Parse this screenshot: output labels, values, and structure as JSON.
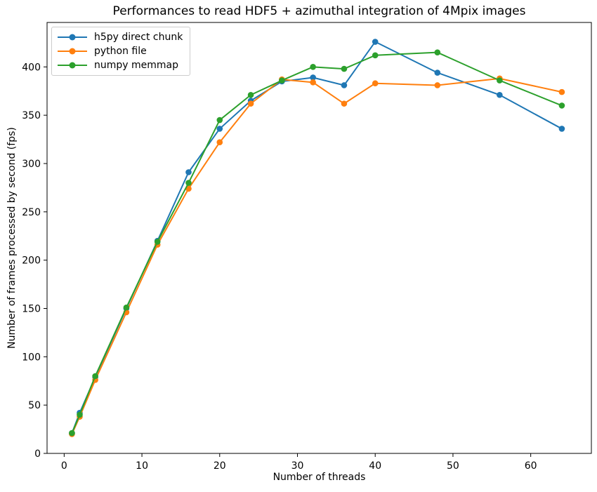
{
  "figure": {
    "background": "#ffffff",
    "frame_color": "#000000",
    "text_color": "#000000",
    "legend_border_color": "#cccccc"
  },
  "chart_data": {
    "type": "line",
    "title": "Performances to read HDF5 + azimuthal integration of 4Mpix images",
    "xlabel": "Number of threads",
    "ylabel": "Number of frames processed by second (fps)",
    "x": [
      1,
      2,
      4,
      8,
      12,
      16,
      20,
      24,
      28,
      32,
      36,
      40,
      48,
      56,
      64
    ],
    "series": [
      {
        "name": "h5py direct chunk",
        "color": "#1f77b4",
        "values": [
          21,
          42,
          79,
          150,
          220,
          291,
          336,
          365,
          385,
          389,
          381,
          426,
          394,
          371,
          336
        ]
      },
      {
        "name": "python file",
        "color": "#ff7f0e",
        "values": [
          20,
          38,
          76,
          146,
          216,
          274,
          322,
          362,
          387,
          384,
          362,
          383,
          381,
          388,
          374
        ]
      },
      {
        "name": "numpy memmap",
        "color": "#2ca02c",
        "values": [
          21,
          40,
          80,
          151,
          219,
          280,
          345,
          371,
          386,
          400,
          398,
          412,
          415,
          386,
          360
        ]
      }
    ],
    "xticks": [
      0,
      10,
      20,
      30,
      40,
      50,
      60
    ],
    "yticks": [
      0,
      50,
      100,
      150,
      200,
      250,
      300,
      350,
      400
    ],
    "xlim": [
      -2.2,
      67.8
    ],
    "ylim": [
      0,
      446
    ],
    "grid": false,
    "legend_position": "upper left",
    "marker": "circle"
  }
}
